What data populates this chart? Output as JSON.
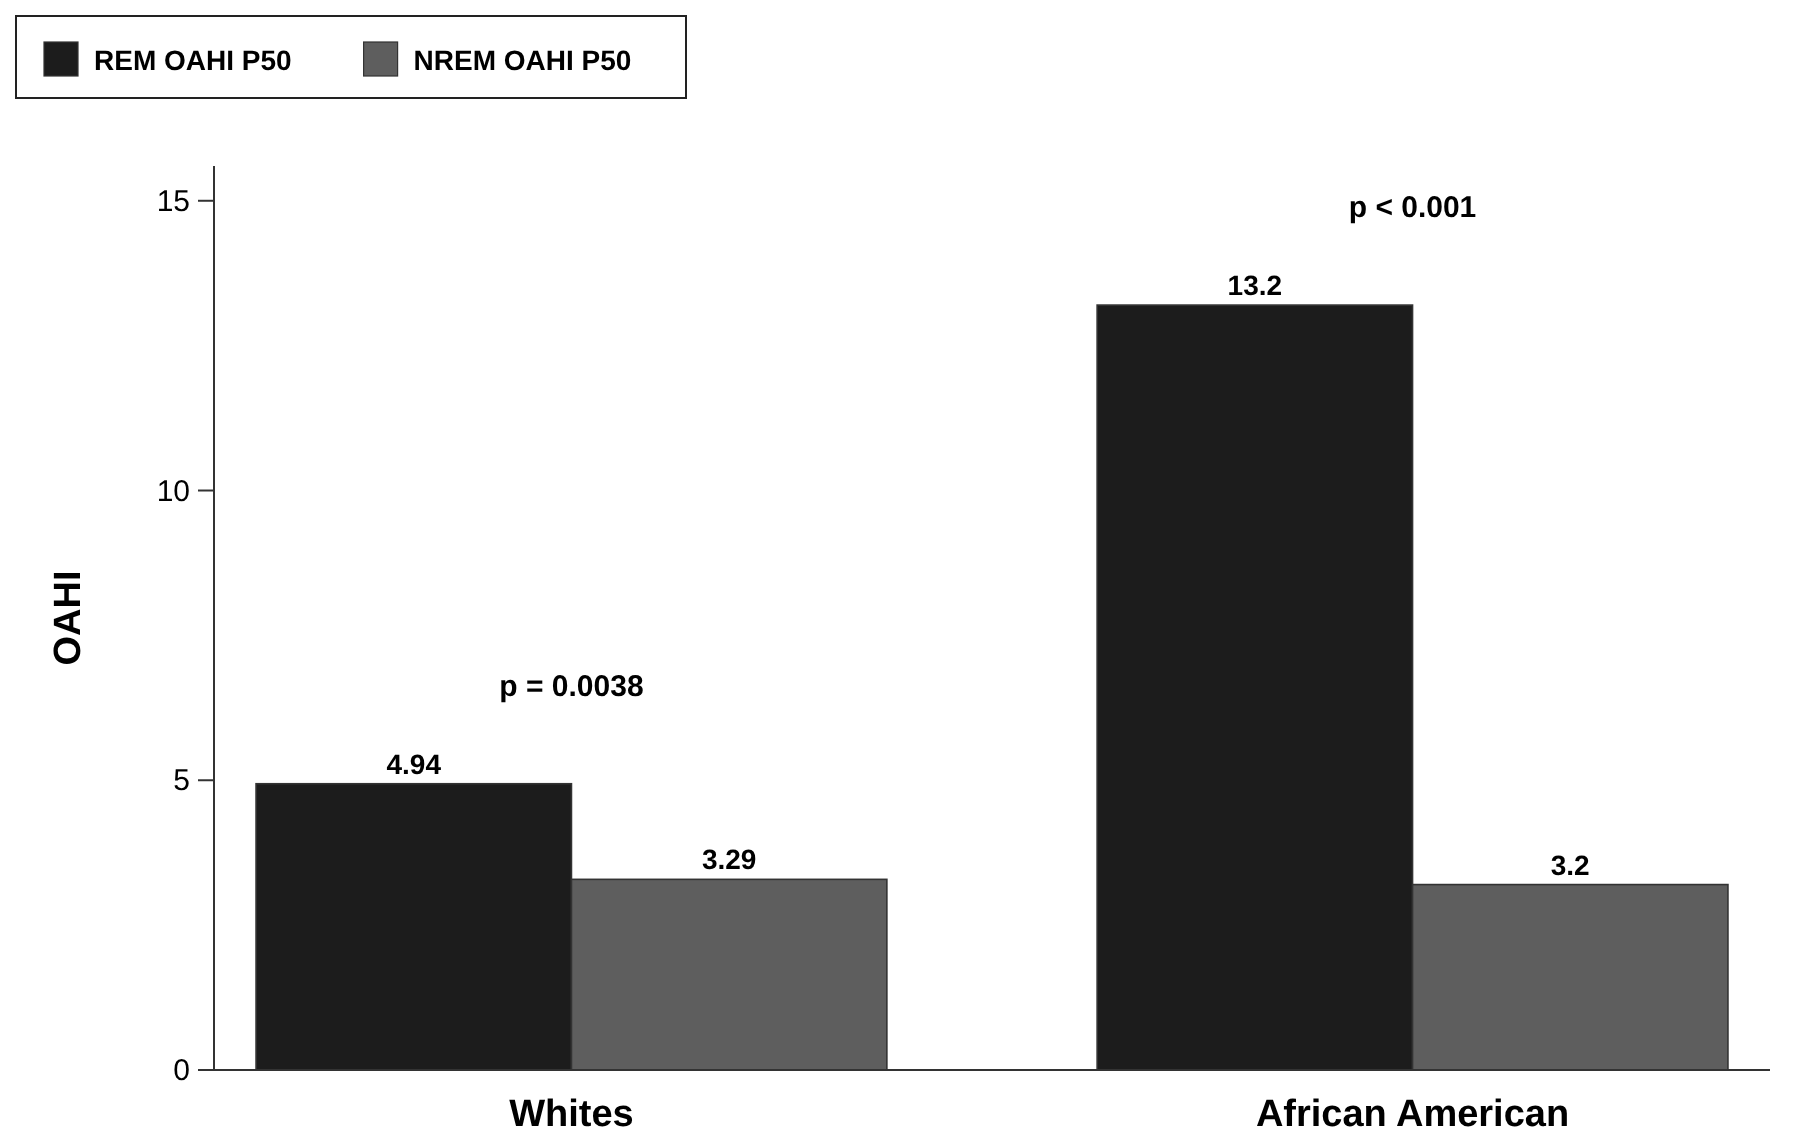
{
  "chart_data": {
    "type": "bar",
    "ylabel": "OAHI",
    "categories": [
      "Whites",
      "African American"
    ],
    "series": [
      {
        "name": "REM OAHI P50",
        "color": "#1c1c1c",
        "values": [
          4.94,
          13.2
        ]
      },
      {
        "name": "NREM OAHI P50",
        "color": "#5e5e5e",
        "values": [
          3.29,
          3.2
        ]
      }
    ],
    "ylim": [
      0,
      15.6
    ],
    "yticks": [
      0,
      5,
      10,
      15
    ],
    "data_labels": true,
    "legend": "top left",
    "grid": false,
    "annotations": [
      "p = 0.0038",
      "p < 0.001"
    ]
  }
}
